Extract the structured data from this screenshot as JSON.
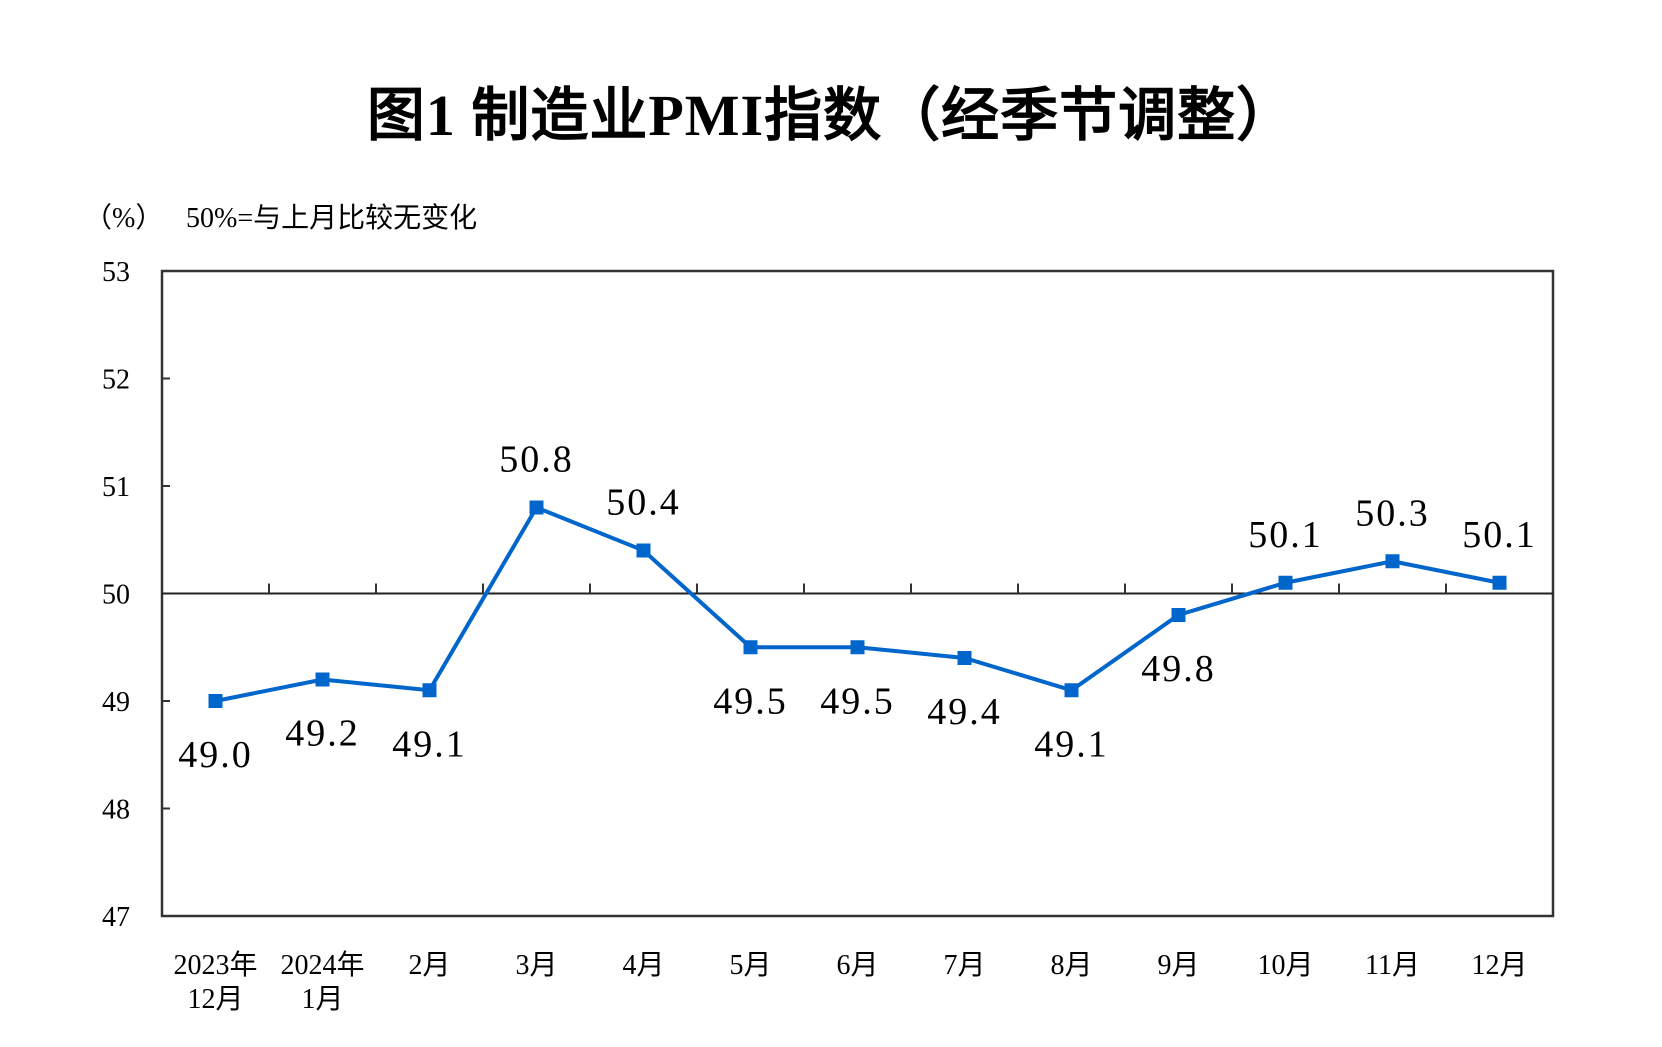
{
  "chart_data": {
    "type": "line",
    "title": "图1  制造业PMI指数（经季节调整）",
    "ylabel": "（%）",
    "annotation": "50%=与上月比较无变化",
    "categories": [
      [
        "2023年",
        "12月"
      ],
      [
        "2024年",
        "1月"
      ],
      [
        "2月"
      ],
      [
        "3月"
      ],
      [
        "4月"
      ],
      [
        "5月"
      ],
      [
        "6月"
      ],
      [
        "7月"
      ],
      [
        "8月"
      ],
      [
        "9月"
      ],
      [
        "10月"
      ],
      [
        "11月"
      ],
      [
        "12月"
      ]
    ],
    "values": [
      49.0,
      49.2,
      49.1,
      50.8,
      50.4,
      49.5,
      49.5,
      49.4,
      49.1,
      49.8,
      50.1,
      50.3,
      50.1
    ],
    "data_labels": [
      "49.0",
      "49.2",
      "49.1",
      "50.8",
      "50.4",
      "49.5",
      "49.5",
      "49.4",
      "49.1",
      "49.8",
      "50.1",
      "50.3",
      "50.1"
    ],
    "ylim": [
      47,
      53
    ],
    "yticks": [
      47,
      48,
      49,
      50,
      51,
      52,
      53
    ],
    "reference_line": 50,
    "grid": false,
    "line_color": "#0066cc"
  }
}
